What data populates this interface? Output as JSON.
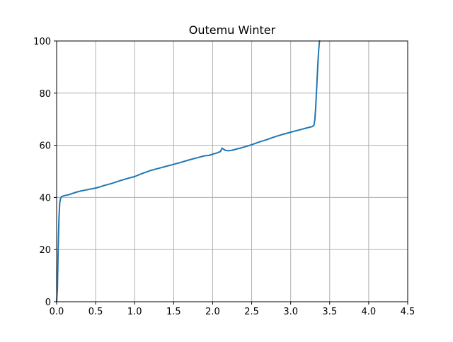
{
  "chart_data": {
    "type": "line",
    "title": "Outemu Winter",
    "xlabel": "",
    "ylabel": "",
    "xlim": [
      0.0,
      4.5
    ],
    "ylim": [
      0,
      100
    ],
    "xticks": [
      0.0,
      0.5,
      1.0,
      1.5,
      2.0,
      2.5,
      3.0,
      3.5,
      4.0,
      4.5
    ],
    "xtick_labels": [
      "0.0",
      "0.5",
      "1.0",
      "1.5",
      "2.0",
      "2.5",
      "3.0",
      "3.5",
      "4.0",
      "4.5"
    ],
    "yticks": [
      0,
      20,
      40,
      60,
      80,
      100
    ],
    "ytick_labels": [
      "0",
      "20",
      "40",
      "60",
      "80",
      "100"
    ],
    "grid": true,
    "line_color": "#1f77b4",
    "grid_color": "#b0b0b0",
    "series": [
      {
        "x": [
          0.0,
          0.01,
          0.02,
          0.03,
          0.04,
          0.05,
          0.06,
          0.08,
          0.1,
          0.15,
          0.2,
          0.25,
          0.3,
          0.35,
          0.4,
          0.45,
          0.5,
          0.55,
          0.6,
          0.7,
          0.8,
          0.9,
          1.0,
          1.1,
          1.2,
          1.3,
          1.4,
          1.5,
          1.6,
          1.7,
          1.8,
          1.9,
          1.95,
          2.0,
          2.05,
          2.1,
          2.12,
          2.14,
          2.16,
          2.2,
          2.25,
          2.3,
          2.4,
          2.5,
          2.6,
          2.7,
          2.8,
          2.9,
          3.0,
          3.1,
          3.2,
          3.28,
          3.3,
          3.31,
          3.32,
          3.33,
          3.34,
          3.35,
          3.36,
          3.37
        ],
        "y": [
          0,
          5,
          20,
          32,
          38,
          39.5,
          40.2,
          40.5,
          40.7,
          41.0,
          41.5,
          42.0,
          42.4,
          42.7,
          43.0,
          43.3,
          43.6,
          44.0,
          44.5,
          45.3,
          46.3,
          47.2,
          48.0,
          49.2,
          50.3,
          51.1,
          51.9,
          52.7,
          53.5,
          54.4,
          55.2,
          56.0,
          56.1,
          56.6,
          57.0,
          57.6,
          58.9,
          58.5,
          58.1,
          57.9,
          58.1,
          58.5,
          59.3,
          60.2,
          61.3,
          62.2,
          63.3,
          64.2,
          65.0,
          65.8,
          66.6,
          67.2,
          67.8,
          70,
          74,
          80,
          86,
          92,
          97,
          100
        ]
      }
    ]
  }
}
